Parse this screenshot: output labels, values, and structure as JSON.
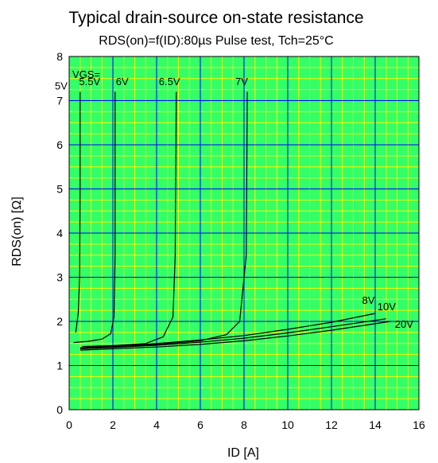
{
  "colors": {
    "plot_bg": "#33ff66",
    "minor_grid": "#ffff00",
    "major_grid": "#0000ff",
    "curve": "#000000",
    "text": "#000000"
  },
  "chart_data": {
    "type": "line",
    "title": "Typical drain-source on-state resistance",
    "subtitle": "RDS(on)=f(ID):80µs Pulse test, Tch=25°C",
    "xlabel": "ID [A]",
    "ylabel": "RDS(on) [Ω]",
    "xlim": [
      0,
      16
    ],
    "ylim": [
      0,
      8
    ],
    "x_ticks": [
      0,
      2,
      4,
      6,
      8,
      10,
      12,
      14,
      16
    ],
    "y_ticks": [
      0,
      1,
      2,
      3,
      4,
      5,
      6,
      7,
      8
    ],
    "x_tick_labels": [
      "0",
      "2",
      "4",
      "6",
      "8",
      "10",
      "12",
      "14",
      "16"
    ],
    "y_tick_labels": [
      "0",
      "1",
      "2",
      "3",
      "4",
      "5",
      "6",
      "7",
      "8"
    ],
    "minor_x_step": 0.5,
    "minor_y_step": 0.25,
    "grid": true,
    "legend_prefix": "VGS=",
    "series": [
      {
        "name": "5V",
        "x": [
          0.3,
          0.42,
          0.48,
          0.5,
          0.5
        ],
        "y": [
          1.75,
          2.2,
          3.0,
          5.0,
          7.2
        ]
      },
      {
        "name": "5.5V",
        "x": [
          0.2,
          0.9,
          1.5,
          1.9,
          2.05,
          2.1,
          2.1
        ],
        "y": [
          1.52,
          1.55,
          1.6,
          1.72,
          2.1,
          3.5,
          7.2
        ]
      },
      {
        "name": "6V",
        "x": [
          0.6,
          2.0,
          3.5,
          4.3,
          4.75,
          4.85,
          4.9
        ],
        "y": [
          1.43,
          1.45,
          1.5,
          1.65,
          2.1,
          3.5,
          7.2
        ]
      },
      {
        "name": "6.5V",
        "x": [
          0.5,
          2.0,
          4.0,
          6.0,
          7.2,
          7.8,
          8.1,
          8.15
        ],
        "y": [
          1.4,
          1.43,
          1.48,
          1.56,
          1.7,
          2.0,
          3.5,
          7.2
        ]
      },
      {
        "name": "8V",
        "x": [
          0.5,
          2,
          4,
          6,
          8,
          10,
          12,
          14
        ],
        "y": [
          1.4,
          1.44,
          1.5,
          1.58,
          1.68,
          1.82,
          1.98,
          2.18
        ]
      },
      {
        "name": "10V",
        "x": [
          0.5,
          2,
          4,
          6,
          8,
          10,
          12,
          14.5
        ],
        "y": [
          1.38,
          1.41,
          1.46,
          1.53,
          1.62,
          1.74,
          1.88,
          2.06
        ]
      },
      {
        "name": "20V",
        "x": [
          0.5,
          2,
          4,
          6,
          8,
          10,
          12,
          14.7
        ],
        "y": [
          1.35,
          1.38,
          1.42,
          1.48,
          1.56,
          1.67,
          1.8,
          2.0
        ]
      }
    ]
  }
}
